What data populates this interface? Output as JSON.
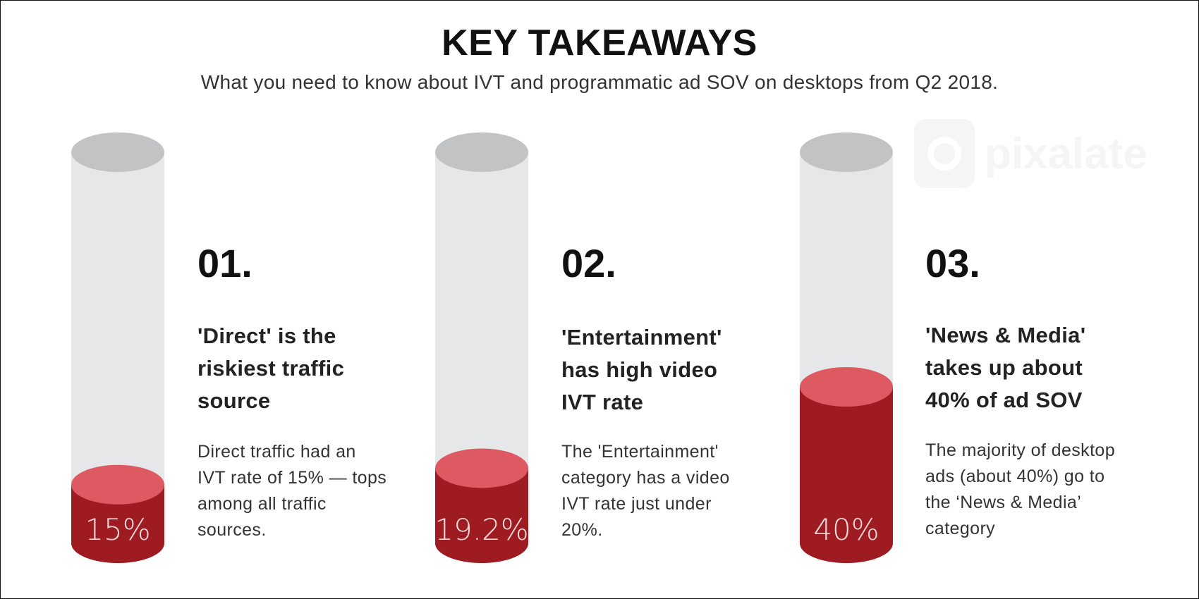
{
  "title": "KEY TAKEAWAYS",
  "subtitle": "What you need to know about IVT and programmatic ad SOV on desktops from Q2 2018.",
  "watermark": {
    "text": "pixalate",
    "icon": "pixalate-logo-icon"
  },
  "colors": {
    "cylinder_empty": "#e6e7e8",
    "cylinder_top": "#c2c3c5",
    "fill_side": "#9e1b22",
    "fill_top": "#de5a62"
  },
  "takeaways": [
    {
      "number": "01.",
      "heading": "'Direct' is the riskiest traffic source",
      "body": "Direct traffic had an IVT rate of 15% — tops among all traffic sources.",
      "value_label": "15%",
      "fill_fraction": 0.15
    },
    {
      "number": "02.",
      "heading": "'Entertainment' has high video IVT rate",
      "body": "The 'Entertainment' category has a video IVT rate just under 20%.",
      "value_label": "19.2%",
      "fill_fraction": 0.192
    },
    {
      "number": "03.",
      "heading": "'News & Media' takes up about 40% of ad SOV",
      "body": "The majority of desktop ads (about 40%) go to the ‘News & Media’ category",
      "value_label": "40%",
      "fill_fraction": 0.4
    }
  ]
}
